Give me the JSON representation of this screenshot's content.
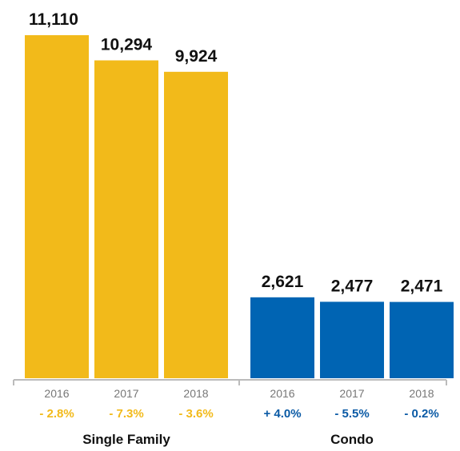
{
  "chart_data": {
    "type": "bar",
    "title": "",
    "xlabel": "",
    "ylabel": "",
    "ylim": [
      0,
      11110
    ],
    "grid": false,
    "legend": "none",
    "groups": [
      {
        "name": "Single Family",
        "color": "#F2BA1A",
        "change_color": "#F2BA1A",
        "bars": [
          {
            "category": "2016",
            "value": 11110,
            "value_label": "11,110",
            "change": "- 2.8%"
          },
          {
            "category": "2017",
            "value": 10294,
            "value_label": "10,294",
            "change": "- 7.3%"
          },
          {
            "category": "2018",
            "value": 9924,
            "value_label": "9,924",
            "change": "- 3.6%"
          }
        ]
      },
      {
        "name": "Condo",
        "color": "#0064B3",
        "change_color": "#0A5AA5",
        "bars": [
          {
            "category": "2016",
            "value": 2621,
            "value_label": "2,621",
            "change": "+ 4.0%"
          },
          {
            "category": "2017",
            "value": 2477,
            "value_label": "2,477",
            "change": "- 5.5%"
          },
          {
            "category": "2018",
            "value": 2471,
            "value_label": "2,471",
            "change": "- 0.2%"
          }
        ]
      }
    ],
    "axis_color": "#BBBBBB"
  }
}
